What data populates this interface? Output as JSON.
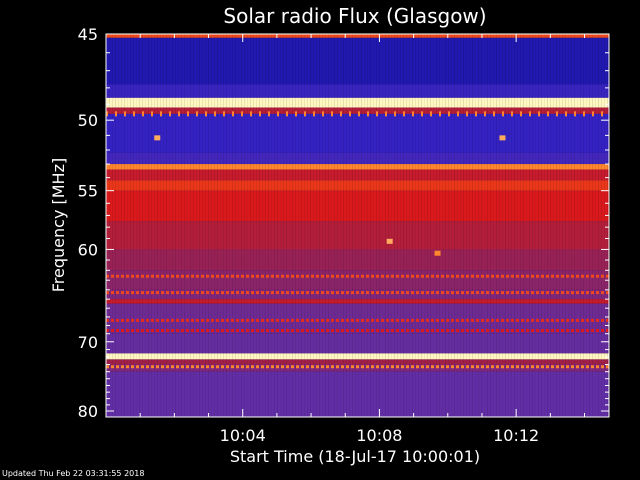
{
  "chart_data": {
    "type": "heatmap",
    "title": "Solar radio Flux (Glasgow)",
    "xlabel": "Start Time (18-Jul-17 10:00:01)",
    "ylabel": "Frequency [MHz]",
    "x_axis": {
      "unit": "time",
      "range": [
        "10:00:01",
        "10:14:44"
      ],
      "ticks": [
        {
          "label": "10:04",
          "minutes": 4
        },
        {
          "label": "10:08",
          "minutes": 8
        },
        {
          "label": "10:12",
          "minutes": 12
        }
      ]
    },
    "y_axis": {
      "unit": "MHz",
      "range": [
        45,
        81
      ],
      "scale": "reciprocal",
      "ticks": [
        45,
        50,
        55,
        60,
        70,
        80
      ]
    },
    "colormap": [
      "#0a0a6e",
      "#2a1fc8",
      "#5b2fb0",
      "#a0204a",
      "#e01818",
      "#ff7a1e",
      "#fff6c0"
    ],
    "frequency_bands": [
      {
        "from": 45.0,
        "to": 45.2,
        "level": 0.75
      },
      {
        "from": 45.2,
        "to": 47.8,
        "level": 0.12
      },
      {
        "from": 47.8,
        "to": 48.6,
        "level": 0.22
      },
      {
        "from": 48.6,
        "to": 49.2,
        "level": 1.0
      },
      {
        "from": 49.2,
        "to": 49.6,
        "level": 0.55
      },
      {
        "from": 49.6,
        "to": 52.2,
        "level": 0.2
      },
      {
        "from": 52.2,
        "to": 53.0,
        "level": 0.25
      },
      {
        "from": 53.0,
        "to": 53.4,
        "level": 0.85
      },
      {
        "from": 53.4,
        "to": 54.2,
        "level": 0.6
      },
      {
        "from": 54.2,
        "to": 55.0,
        "level": 0.72
      },
      {
        "from": 55.0,
        "to": 57.5,
        "level": 0.65
      },
      {
        "from": 57.5,
        "to": 60.0,
        "level": 0.55
      },
      {
        "from": 60.0,
        "to": 62.0,
        "level": 0.48
      },
      {
        "from": 62.0,
        "to": 64.0,
        "level": 0.45
      },
      {
        "from": 64.0,
        "to": 65.0,
        "level": 0.42
      },
      {
        "from": 65.0,
        "to": 65.5,
        "level": 0.6
      },
      {
        "from": 65.5,
        "to": 69.0,
        "level": 0.38
      },
      {
        "from": 69.0,
        "to": 71.5,
        "level": 0.36
      },
      {
        "from": 71.5,
        "to": 72.3,
        "level": 1.0
      },
      {
        "from": 72.3,
        "to": 73.0,
        "level": 0.5
      },
      {
        "from": 73.0,
        "to": 74.0,
        "level": 0.42
      },
      {
        "from": 74.0,
        "to": 81.0,
        "level": 0.35
      }
    ],
    "interference_lines": [
      {
        "freq": 49.6,
        "level": 0.85,
        "style": "dashed"
      },
      {
        "freq": 62.6,
        "level": 0.75,
        "style": "dotted"
      },
      {
        "freq": 64.3,
        "level": 0.75,
        "style": "dotted"
      },
      {
        "freq": 67.4,
        "level": 0.7,
        "style": "dotted"
      },
      {
        "freq": 68.6,
        "level": 0.65,
        "style": "dotted"
      },
      {
        "freq": 73.3,
        "level": 0.85,
        "style": "dotted"
      }
    ],
    "hot_spots": [
      {
        "minutes": 1.5,
        "freq": 51.2,
        "level": 0.9
      },
      {
        "minutes": 11.6,
        "freq": 51.2,
        "level": 0.9
      },
      {
        "minutes": 8.3,
        "freq": 59.3,
        "level": 0.9
      },
      {
        "minutes": 9.7,
        "freq": 60.4,
        "level": 0.85
      }
    ]
  },
  "footer": {
    "updated_text": "Updated Thu Feb 22 03:31:55 2018"
  }
}
